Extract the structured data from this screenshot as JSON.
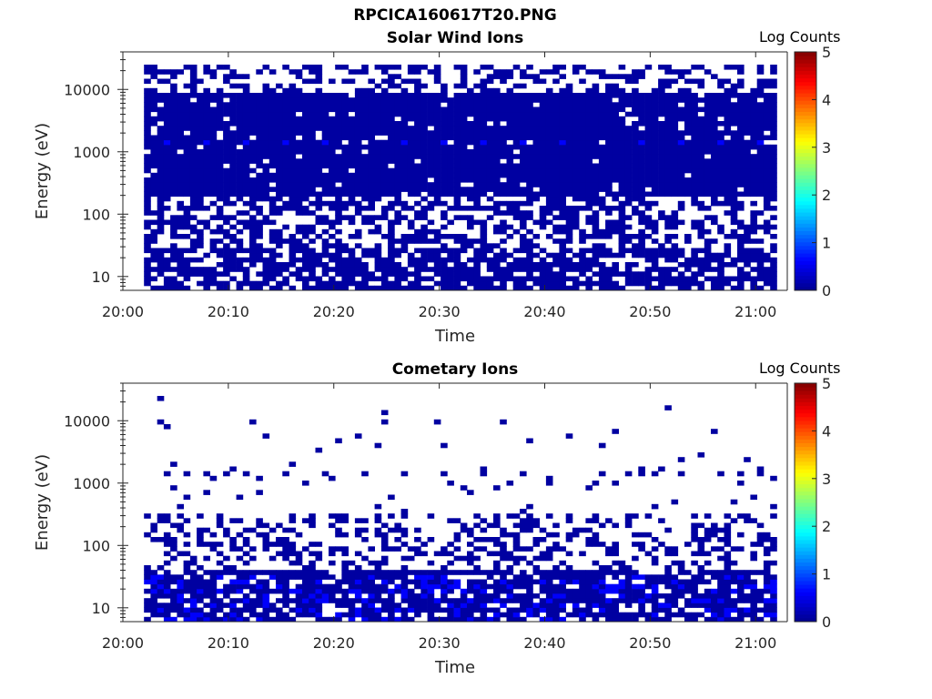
{
  "figure_title": "RPCICA160617T20.PNG",
  "colorbar": {
    "label": "Log Counts",
    "ticks": [
      "0",
      "1",
      "2",
      "3",
      "4",
      "5"
    ],
    "colormap": [
      "#00008f",
      "#0000ff",
      "#0080ff",
      "#00ffff",
      "#80ff80",
      "#ffff00",
      "#ff8000",
      "#ff0000",
      "#800000"
    ]
  },
  "chart_data": [
    {
      "type": "heatmap",
      "title": "Solar Wind Ions",
      "xlabel": "Time",
      "ylabel": "Energy (eV)",
      "yscale": "log",
      "ylim": [
        6,
        40000
      ],
      "xlim": [
        "20:00",
        "21:03"
      ],
      "x_ticks": [
        "20:00",
        "20:10",
        "20:20",
        "20:30",
        "20:40",
        "20:50",
        "21:00"
      ],
      "y_ticks": [
        "10",
        "100",
        "1000",
        "10000"
      ],
      "clim": [
        0,
        5
      ],
      "time_range": [
        "20:02",
        "21:02"
      ],
      "dense_band_eV": [
        200,
        9000
      ],
      "sparse_high_band_eV": [
        9000,
        25000
      ],
      "sparse_low_band_eV": [
        6,
        200
      ],
      "enhanced_level_eV": 1500,
      "enhanced_log_counts": 0.6,
      "typical_log_counts": 0.1
    },
    {
      "type": "heatmap",
      "title": "Cometary Ions",
      "xlabel": "Time",
      "ylabel": "Energy (eV)",
      "yscale": "log",
      "ylim": [
        6,
        40000
      ],
      "xlim": [
        "20:00",
        "21:03"
      ],
      "x_ticks": [
        "20:00",
        "20:10",
        "20:20",
        "20:30",
        "20:40",
        "20:50",
        "21:00"
      ],
      "y_ticks": [
        "10",
        "100",
        "1000",
        "10000"
      ],
      "clim": [
        0,
        5
      ],
      "time_range": [
        "20:02",
        "21:02"
      ],
      "sparse_1500_eV_line": 1500,
      "scattered_band_eV": [
        40,
        300
      ],
      "dense_low_band_eV": [
        6,
        40
      ],
      "enhanced_level_eV": 15,
      "enhanced_log_counts": 0.6,
      "typical_log_counts": 0.1
    }
  ]
}
